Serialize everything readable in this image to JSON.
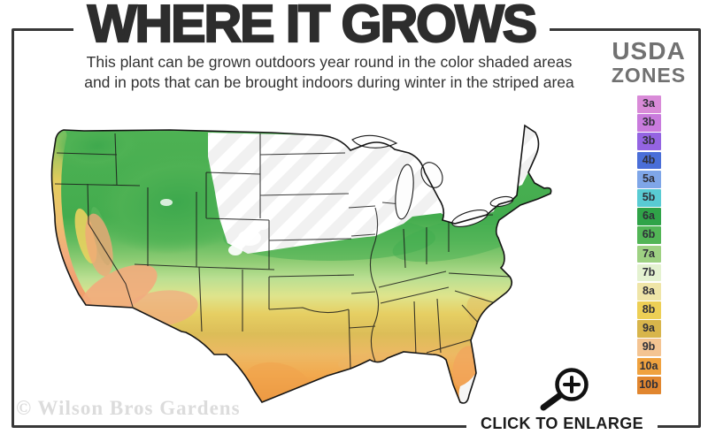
{
  "header": {
    "title": "WHERE IT GROWS",
    "subtitle_line1": "This plant can be grown outdoors year round in the color shaded areas",
    "subtitle_line2": "and in pots that can be brought indoors during winter in the striped area"
  },
  "legend": {
    "title_line1": "USDA",
    "title_line2": "ZONES",
    "zones": [
      {
        "label": "3a",
        "color": "#D98BD8"
      },
      {
        "label": "3b",
        "color": "#C97BDD"
      },
      {
        "label": "3b",
        "color": "#9464E2"
      },
      {
        "label": "4b",
        "color": "#4A6ED8"
      },
      {
        "label": "5a",
        "color": "#7FA6E8"
      },
      {
        "label": "5b",
        "color": "#59CBD3"
      },
      {
        "label": "6a",
        "color": "#2FA348"
      },
      {
        "label": "6b",
        "color": "#52B556"
      },
      {
        "label": "7a",
        "color": "#9ED183"
      },
      {
        "label": "7b",
        "color": "#E4F2D1"
      },
      {
        "label": "8a",
        "color": "#EFE5A8"
      },
      {
        "label": "8b",
        "color": "#EDCF55"
      },
      {
        "label": "9a",
        "color": "#D8B54B"
      },
      {
        "label": "9b",
        "color": "#F4C492"
      },
      {
        "label": "10a",
        "color": "#F0A23F"
      },
      {
        "label": "10b",
        "color": "#E1862F"
      }
    ]
  },
  "map": {
    "palette": {
      "shaded_green": "#47AE50",
      "shaded_yellow": "#E6CF63",
      "shaded_tan": "#DCBD58",
      "shaded_orange": "#F0A24C",
      "coast_salmon": "#F2AB7C",
      "striped_area_base": "#F1F1F1",
      "state_line": "#1B1B1B"
    }
  },
  "watermark": "© Wilson Bros Gardens",
  "footer": {
    "enlarge_label": "CLICK TO ENLARGE",
    "icon": "magnifier-plus-icon"
  }
}
